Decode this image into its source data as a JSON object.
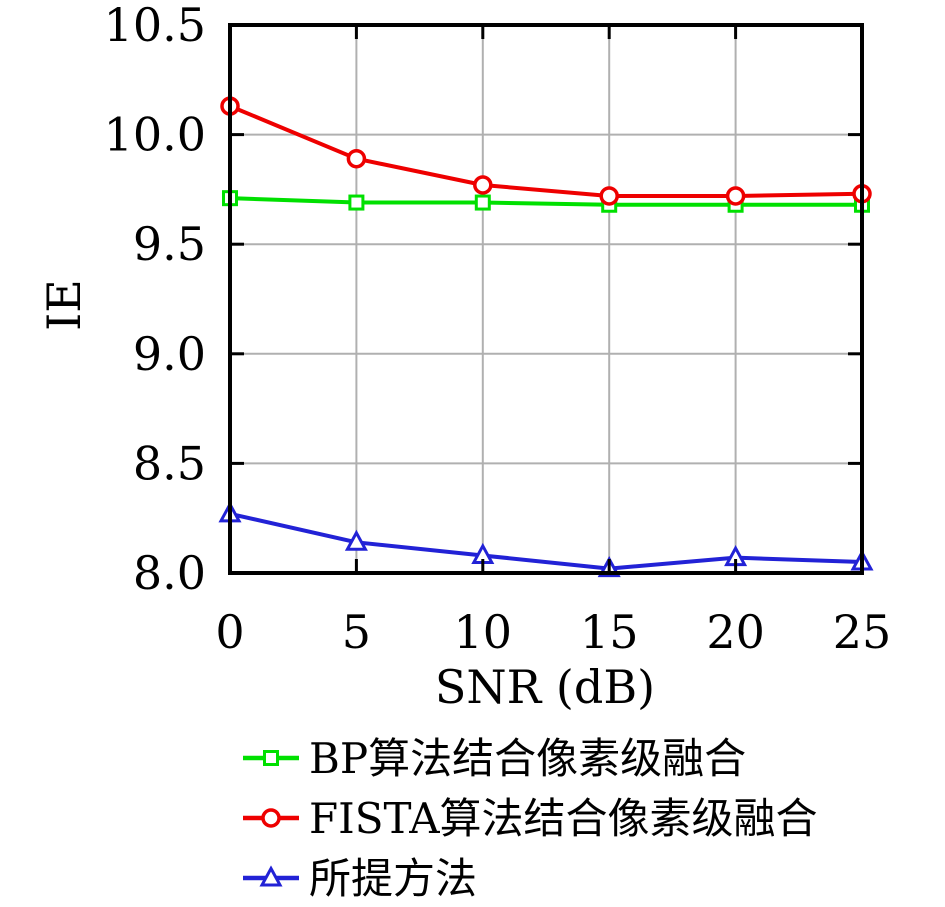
{
  "chart_data": {
    "type": "line",
    "x": [
      0,
      5,
      10,
      15,
      20,
      25
    ],
    "series": [
      {
        "name": "BP算法结合像素级融合",
        "color": "#00e000",
        "marker": "square",
        "values": [
          9.71,
          9.69,
          9.69,
          9.68,
          9.68,
          9.68
        ]
      },
      {
        "name": "FISTA算法结合像素级融合",
        "color": "#ee0000",
        "marker": "circle",
        "values": [
          10.13,
          9.89,
          9.77,
          9.72,
          9.72,
          9.73
        ]
      },
      {
        "name": "所提方法",
        "color": "#2222d6",
        "marker": "triangle",
        "values": [
          8.27,
          8.14,
          8.08,
          8.02,
          8.07,
          8.05
        ]
      }
    ],
    "title": "",
    "xlabel": "SNR (dB)",
    "ylabel": "IE",
    "xlim": [
      0,
      25
    ],
    "ylim": [
      8.0,
      10.5
    ],
    "xticks": [
      0,
      5,
      10,
      15,
      20,
      25
    ],
    "xtick_labels": [
      "0",
      "5",
      "10",
      "15",
      "20",
      "25"
    ],
    "yticks": [
      8.0,
      8.5,
      9.0,
      9.5,
      10.0,
      10.5
    ],
    "ytick_labels": [
      "8.0",
      "8.5",
      "9.0",
      "9.5",
      "10.0",
      "10.5"
    ],
    "grid": true,
    "legend_position": "below-left"
  },
  "colors": {
    "axis": "#000000",
    "grid": "#b0b0b0",
    "background": "#ffffff",
    "marker_fill": "#ffffff",
    "text": "#000000"
  }
}
